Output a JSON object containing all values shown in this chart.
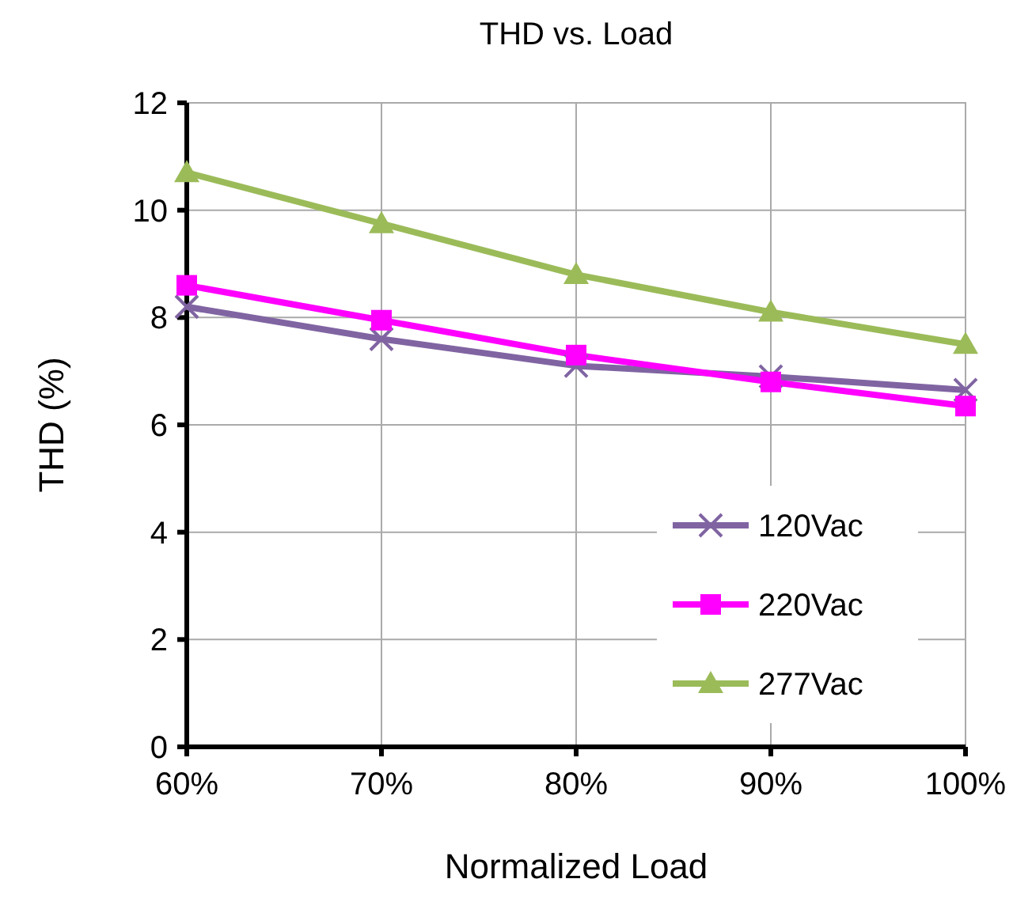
{
  "chart_data": {
    "type": "line",
    "title": "THD vs. Load",
    "xlabel": "Normalized Load",
    "ylabel": "THD (%)",
    "categories": [
      "60%",
      "70%",
      "80%",
      "90%",
      "100%"
    ],
    "ylim": [
      0,
      12
    ],
    "yticks": [
      0,
      2,
      4,
      6,
      8,
      10,
      12
    ],
    "grid": true,
    "legend": "bottom right",
    "line_style": "solid",
    "series": [
      {
        "name": "120Vac",
        "color": "#8064a2",
        "marker": "cross",
        "values": [
          8.2,
          7.6,
          7.1,
          6.9,
          6.65
        ]
      },
      {
        "name": "220Vac",
        "color": "#ff00ff",
        "marker": "square",
        "values": [
          8.6,
          7.95,
          7.3,
          6.8,
          6.35
        ]
      },
      {
        "name": "277Vac",
        "color": "#9bbb59",
        "marker": "triangle",
        "values": [
          10.7,
          9.75,
          8.8,
          8.1,
          7.5
        ]
      }
    ]
  }
}
